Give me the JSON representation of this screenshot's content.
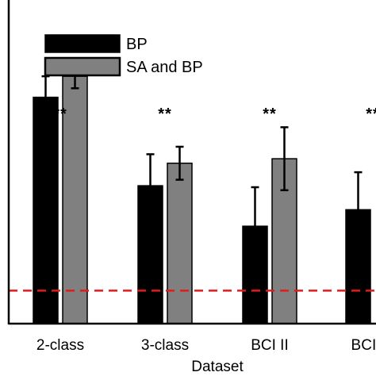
{
  "chart_data": {
    "type": "bar",
    "xlabel": "Dataset",
    "ylabel": "",
    "ylim": [
      0,
      100
    ],
    "categories": [
      "2-class",
      "3-class",
      "BCI II",
      "BCI IV"
    ],
    "series": [
      {
        "name": "BP",
        "color": "#000000",
        "values": [
          75.5,
          46.0,
          32.5,
          38.0
        ],
        "errors": [
          7.0,
          10.5,
          13.0,
          12.5
        ]
      },
      {
        "name": "SA and BP",
        "color": "#808080",
        "values": [
          82.5,
          53.5,
          55.0,
          null
        ],
        "errors": [
          4.0,
          5.5,
          10.5,
          null
        ]
      }
    ],
    "significance": [
      "**",
      "**",
      "**",
      "**"
    ],
    "chance_line": {
      "value": 11.0,
      "color": "#e41a1c",
      "style": "dashed"
    },
    "legend_placement": "top-left",
    "grid": false
  }
}
